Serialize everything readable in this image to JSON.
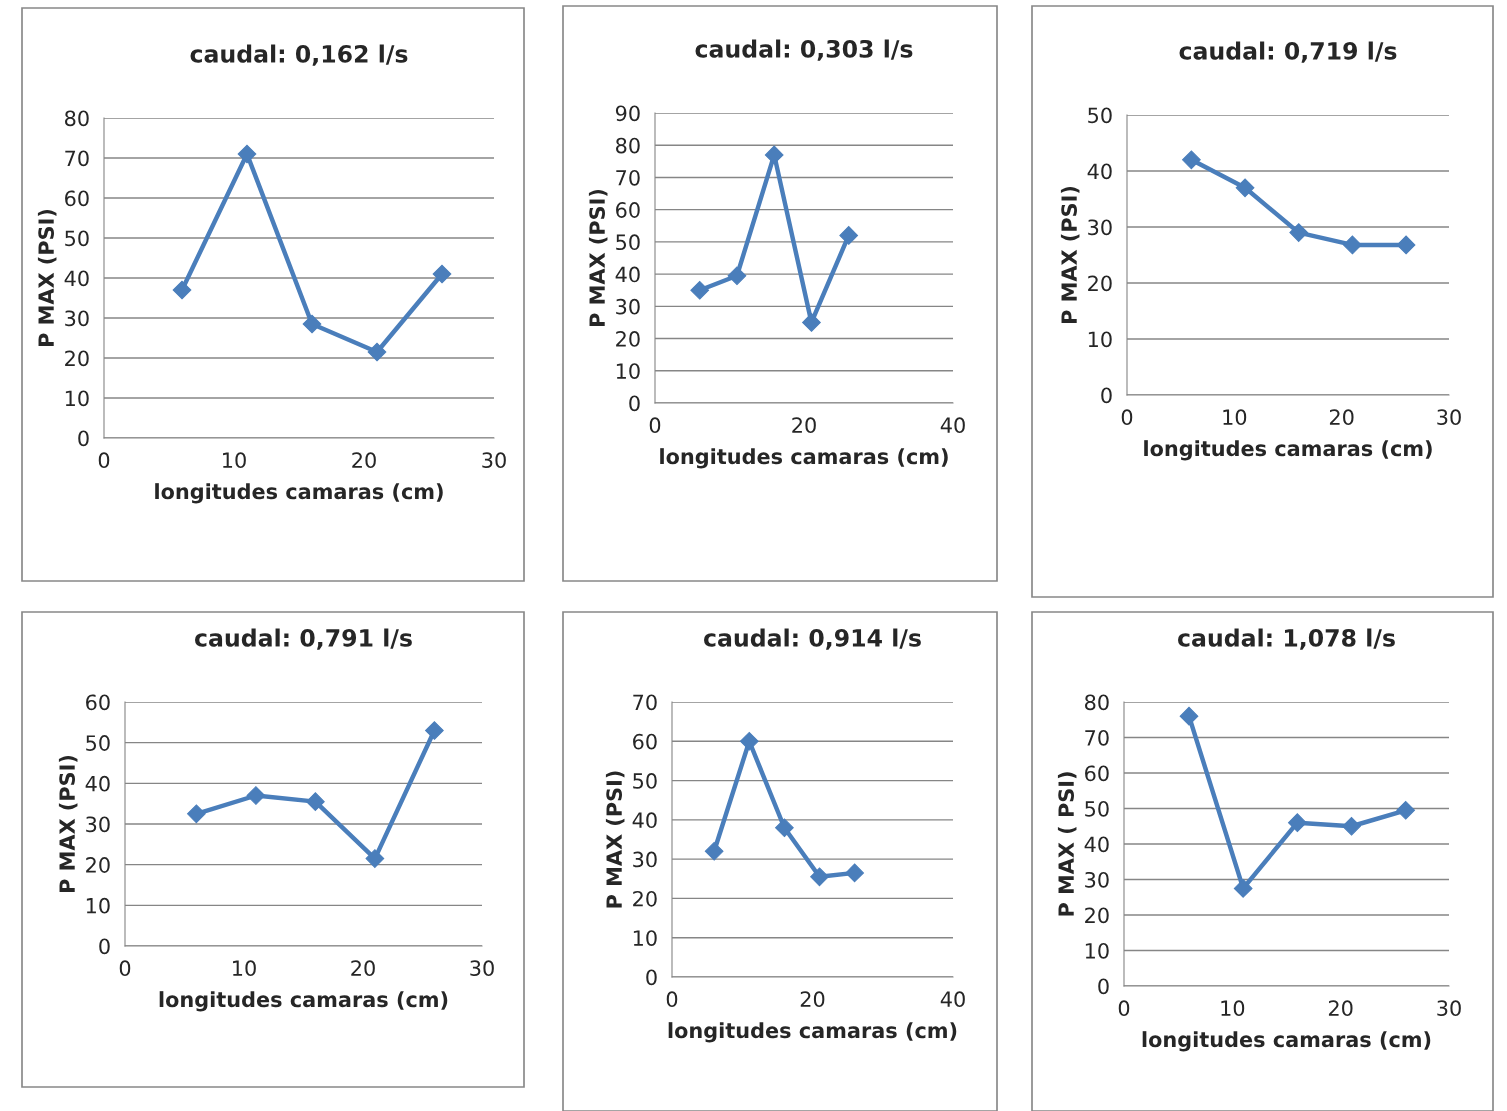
{
  "chart_data": [
    {
      "type": "line",
      "title": "caudal: 0,162 l/s",
      "xlabel": "longitudes camaras (cm)",
      "ylabel": "P MAX (PSI)",
      "x": [
        6,
        11,
        16,
        21,
        26
      ],
      "series": [
        {
          "color": "#4a7ebb",
          "values": [
            37,
            71,
            28.5,
            21.5,
            41
          ]
        }
      ],
      "xlim": [
        0,
        30
      ],
      "xticks": [
        0,
        10,
        20,
        30
      ],
      "ylim": [
        0,
        80
      ],
      "yticks": [
        0,
        10,
        20,
        30,
        40,
        50,
        60,
        70,
        80
      ],
      "grid": "y",
      "marker": "diamond",
      "line_style": "solid",
      "legend": false
    },
    {
      "type": "line",
      "title": "caudal: 0,303 l/s",
      "xlabel": "longitudes camaras (cm)",
      "ylabel": "P MAX (PSI)",
      "x": [
        6,
        11,
        16,
        21,
        26
      ],
      "series": [
        {
          "color": "#4a7ebb",
          "values": [
            35,
            39.5,
            77,
            25,
            52
          ]
        }
      ],
      "xlim": [
        0,
        40
      ],
      "xticks": [
        0,
        20,
        40
      ],
      "ylim": [
        0,
        90
      ],
      "yticks": [
        0,
        10,
        20,
        30,
        40,
        50,
        60,
        70,
        80,
        90
      ],
      "grid": "y",
      "marker": "diamond",
      "line_style": "solid",
      "legend": false
    },
    {
      "type": "line",
      "title": "caudal: 0,719 l/s",
      "xlabel": "longitudes camaras (cm)",
      "ylabel": "P MAX (PSI)",
      "x": [
        6,
        11,
        16,
        21,
        26
      ],
      "series": [
        {
          "color": "#4a7ebb",
          "values": [
            42,
            37,
            29,
            26.8,
            26.8
          ]
        }
      ],
      "xlim": [
        0,
        30
      ],
      "xticks": [
        0,
        10,
        20,
        30
      ],
      "ylim": [
        0,
        50
      ],
      "yticks": [
        0,
        10,
        20,
        30,
        40,
        50
      ],
      "grid": "y",
      "marker": "diamond",
      "line_style": "solid",
      "legend": false
    },
    {
      "type": "line",
      "title": "caudal: 0,791 l/s",
      "xlabel": "longitudes camaras (cm)",
      "ylabel": "P MAX (PSI)",
      "x": [
        6,
        11,
        16,
        21,
        26
      ],
      "series": [
        {
          "color": "#4a7ebb",
          "values": [
            32.5,
            37,
            35.5,
            21.5,
            53
          ]
        }
      ],
      "xlim": [
        0,
        30
      ],
      "xticks": [
        0,
        10,
        20,
        30
      ],
      "ylim": [
        0,
        60
      ],
      "yticks": [
        0,
        10,
        20,
        30,
        40,
        50,
        60
      ],
      "grid": "y",
      "marker": "diamond",
      "line_style": "solid",
      "legend": false
    },
    {
      "type": "line",
      "title": "caudal: 0,914 l/s",
      "xlabel": "longitudes camaras (cm)",
      "ylabel": "P MAX (PSI)",
      "x": [
        6,
        11,
        16,
        21,
        26
      ],
      "series": [
        {
          "color": "#4a7ebb",
          "values": [
            32,
            60,
            38,
            25.5,
            26.5
          ]
        }
      ],
      "xlim": [
        0,
        40
      ],
      "xticks": [
        0,
        20,
        40
      ],
      "ylim": [
        0,
        70
      ],
      "yticks": [
        0,
        10,
        20,
        30,
        40,
        50,
        60,
        70
      ],
      "grid": "y",
      "marker": "diamond",
      "line_style": "solid",
      "legend": false
    },
    {
      "type": "line",
      "title": "caudal: 1,078 l/s",
      "xlabel": "longitudes camaras (cm)",
      "ylabel": "P MAX ( PSI)",
      "x": [
        6,
        11,
        16,
        21,
        26
      ],
      "series": [
        {
          "color": "#4a7ebb",
          "values": [
            76,
            27.5,
            46,
            45,
            49.5
          ]
        }
      ],
      "xlim": [
        0,
        30
      ],
      "xticks": [
        0,
        10,
        20,
        30
      ],
      "ylim": [
        0,
        80
      ],
      "yticks": [
        0,
        10,
        20,
        30,
        40,
        50,
        60,
        70,
        80
      ],
      "grid": "y",
      "marker": "diamond",
      "line_style": "solid",
      "legend": false
    }
  ]
}
